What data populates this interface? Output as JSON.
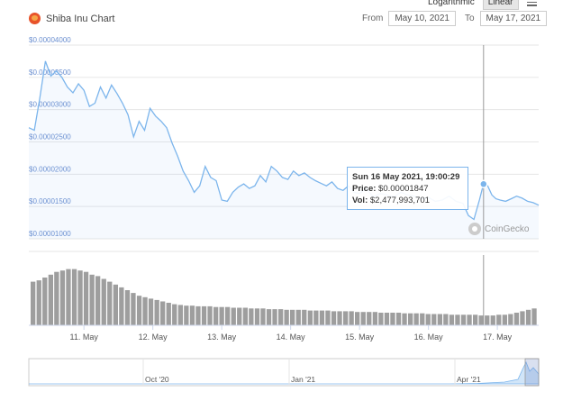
{
  "header": {
    "title": "Shiba Inu Chart",
    "scale_options": [
      "Logarithmic",
      "Linear"
    ],
    "active_scale": "Linear",
    "from_label": "From",
    "from_date": "May 10, 2021",
    "to_label": "To",
    "to_date": "May 17, 2021"
  },
  "tooltip": {
    "datetime": "Sun 16 May 2021, 19:00:29",
    "price_label": "Price:",
    "price": "$0.00001847",
    "vol_label": "Vol:",
    "vol": "$2,477,993,701"
  },
  "watermark": "CoinGecko",
  "navigator": {
    "labels": [
      "Oct '20",
      "Jan '21",
      "Apr '21"
    ]
  },
  "colors": {
    "line": "#7cb5ec",
    "volume": "#9e9e9e",
    "brand": "#e8532a"
  },
  "chart_data": {
    "type": "line",
    "y_ticks": [
      "$0.00004000",
      "$0.00003500",
      "$0.00003000",
      "$0.00002500",
      "$0.00002000",
      "$0.00001500",
      "$0.00001000"
    ],
    "y_tick_values": [
      4e-05,
      3.5e-05,
      3e-05,
      2.5e-05,
      2e-05,
      1.5e-05,
      1e-05
    ],
    "ylim": [
      1e-05,
      4e-05
    ],
    "x_ticks": [
      "11. May",
      "12. May",
      "13. May",
      "14. May",
      "15. May",
      "16. May",
      "17. May"
    ],
    "x_tick_values": [
      1,
      2,
      3,
      4,
      5,
      6,
      7
    ],
    "xlim": [
      0.2,
      7.6
    ],
    "price_series": {
      "x": [
        0.2,
        0.28,
        0.36,
        0.44,
        0.52,
        0.6,
        0.68,
        0.76,
        0.84,
        0.92,
        1.0,
        1.08,
        1.16,
        1.24,
        1.32,
        1.4,
        1.48,
        1.56,
        1.64,
        1.72,
        1.8,
        1.88,
        1.96,
        2.04,
        2.12,
        2.2,
        2.28,
        2.36,
        2.44,
        2.52,
        2.6,
        2.68,
        2.76,
        2.84,
        2.92,
        3.0,
        3.08,
        3.16,
        3.24,
        3.32,
        3.4,
        3.48,
        3.56,
        3.64,
        3.72,
        3.8,
        3.88,
        3.96,
        4.04,
        4.12,
        4.2,
        4.28,
        4.36,
        4.44,
        4.52,
        4.6,
        4.68,
        4.76,
        4.84,
        4.92,
        5.0,
        5.1,
        5.2,
        5.3,
        5.4,
        5.5,
        5.6,
        5.7,
        5.8,
        5.9,
        6.0,
        6.1,
        6.2,
        6.3,
        6.4,
        6.5,
        6.58,
        6.66,
        6.74,
        6.8,
        6.86,
        6.92,
        6.98,
        7.04,
        7.12,
        7.2,
        7.28,
        7.36,
        7.44,
        7.52,
        7.6
      ],
      "y": [
        2.72e-05,
        2.68e-05,
        3.18e-05,
        3.75e-05,
        3.52e-05,
        3.6e-05,
        3.5e-05,
        3.35e-05,
        3.26e-05,
        3.4e-05,
        3.3e-05,
        3.05e-05,
        3.1e-05,
        3.35e-05,
        3.18e-05,
        3.38e-05,
        3.25e-05,
        3.1e-05,
        2.92e-05,
        2.58e-05,
        2.82e-05,
        2.68e-05,
        3.02e-05,
        2.9e-05,
        2.82e-05,
        2.72e-05,
        2.48e-05,
        2.28e-05,
        2.05e-05,
        1.9e-05,
        1.72e-05,
        1.82e-05,
        2.12e-05,
        1.95e-05,
        1.9e-05,
        1.6e-05,
        1.58e-05,
        1.72e-05,
        1.8e-05,
        1.85e-05,
        1.78e-05,
        1.82e-05,
        1.98e-05,
        1.88e-05,
        2.12e-05,
        2.05e-05,
        1.95e-05,
        1.92e-05,
        2.05e-05,
        1.98e-05,
        2.02e-05,
        1.95e-05,
        1.9e-05,
        1.86e-05,
        1.82e-05,
        1.88e-05,
        1.78e-05,
        1.75e-05,
        1.82e-05,
        1.72e-05,
        1.7e-05,
        1.78e-05,
        1.65e-05,
        1.7e-05,
        1.68e-05,
        1.65e-05,
        1.72e-05,
        1.68e-05,
        1.66e-05,
        1.62e-05,
        1.64e-05,
        1.58e-05,
        1.6e-05,
        1.66e-05,
        1.58e-05,
        1.55e-05,
        1.36e-05,
        1.3e-05,
        1.6e-05,
        1.85e-05,
        1.82e-05,
        1.68e-05,
        1.62e-05,
        1.6e-05,
        1.58e-05,
        1.62e-05,
        1.66e-05,
        1.63e-05,
        1.58e-05,
        1.56e-05,
        1.52e-05
      ],
      "highlight": {
        "x": 6.8,
        "y": 1.847e-05
      }
    },
    "volume_series": {
      "bars": 86,
      "x_start": 0.22,
      "x_end": 7.58,
      "relative_values": [
        0.62,
        0.64,
        0.68,
        0.72,
        0.76,
        0.78,
        0.8,
        0.8,
        0.78,
        0.76,
        0.72,
        0.7,
        0.66,
        0.62,
        0.58,
        0.54,
        0.5,
        0.46,
        0.42,
        0.4,
        0.38,
        0.36,
        0.34,
        0.32,
        0.3,
        0.29,
        0.28,
        0.28,
        0.27,
        0.27,
        0.27,
        0.26,
        0.26,
        0.26,
        0.25,
        0.25,
        0.25,
        0.24,
        0.24,
        0.24,
        0.23,
        0.23,
        0.23,
        0.22,
        0.22,
        0.22,
        0.22,
        0.21,
        0.21,
        0.21,
        0.21,
        0.2,
        0.2,
        0.2,
        0.2,
        0.19,
        0.19,
        0.19,
        0.19,
        0.18,
        0.18,
        0.18,
        0.18,
        0.17,
        0.17,
        0.17,
        0.17,
        0.16,
        0.16,
        0.16,
        0.16,
        0.15,
        0.15,
        0.15,
        0.15,
        0.15,
        0.14,
        0.14,
        0.14,
        0.15,
        0.15,
        0.16,
        0.18,
        0.2,
        0.22,
        0.24
      ]
    }
  }
}
